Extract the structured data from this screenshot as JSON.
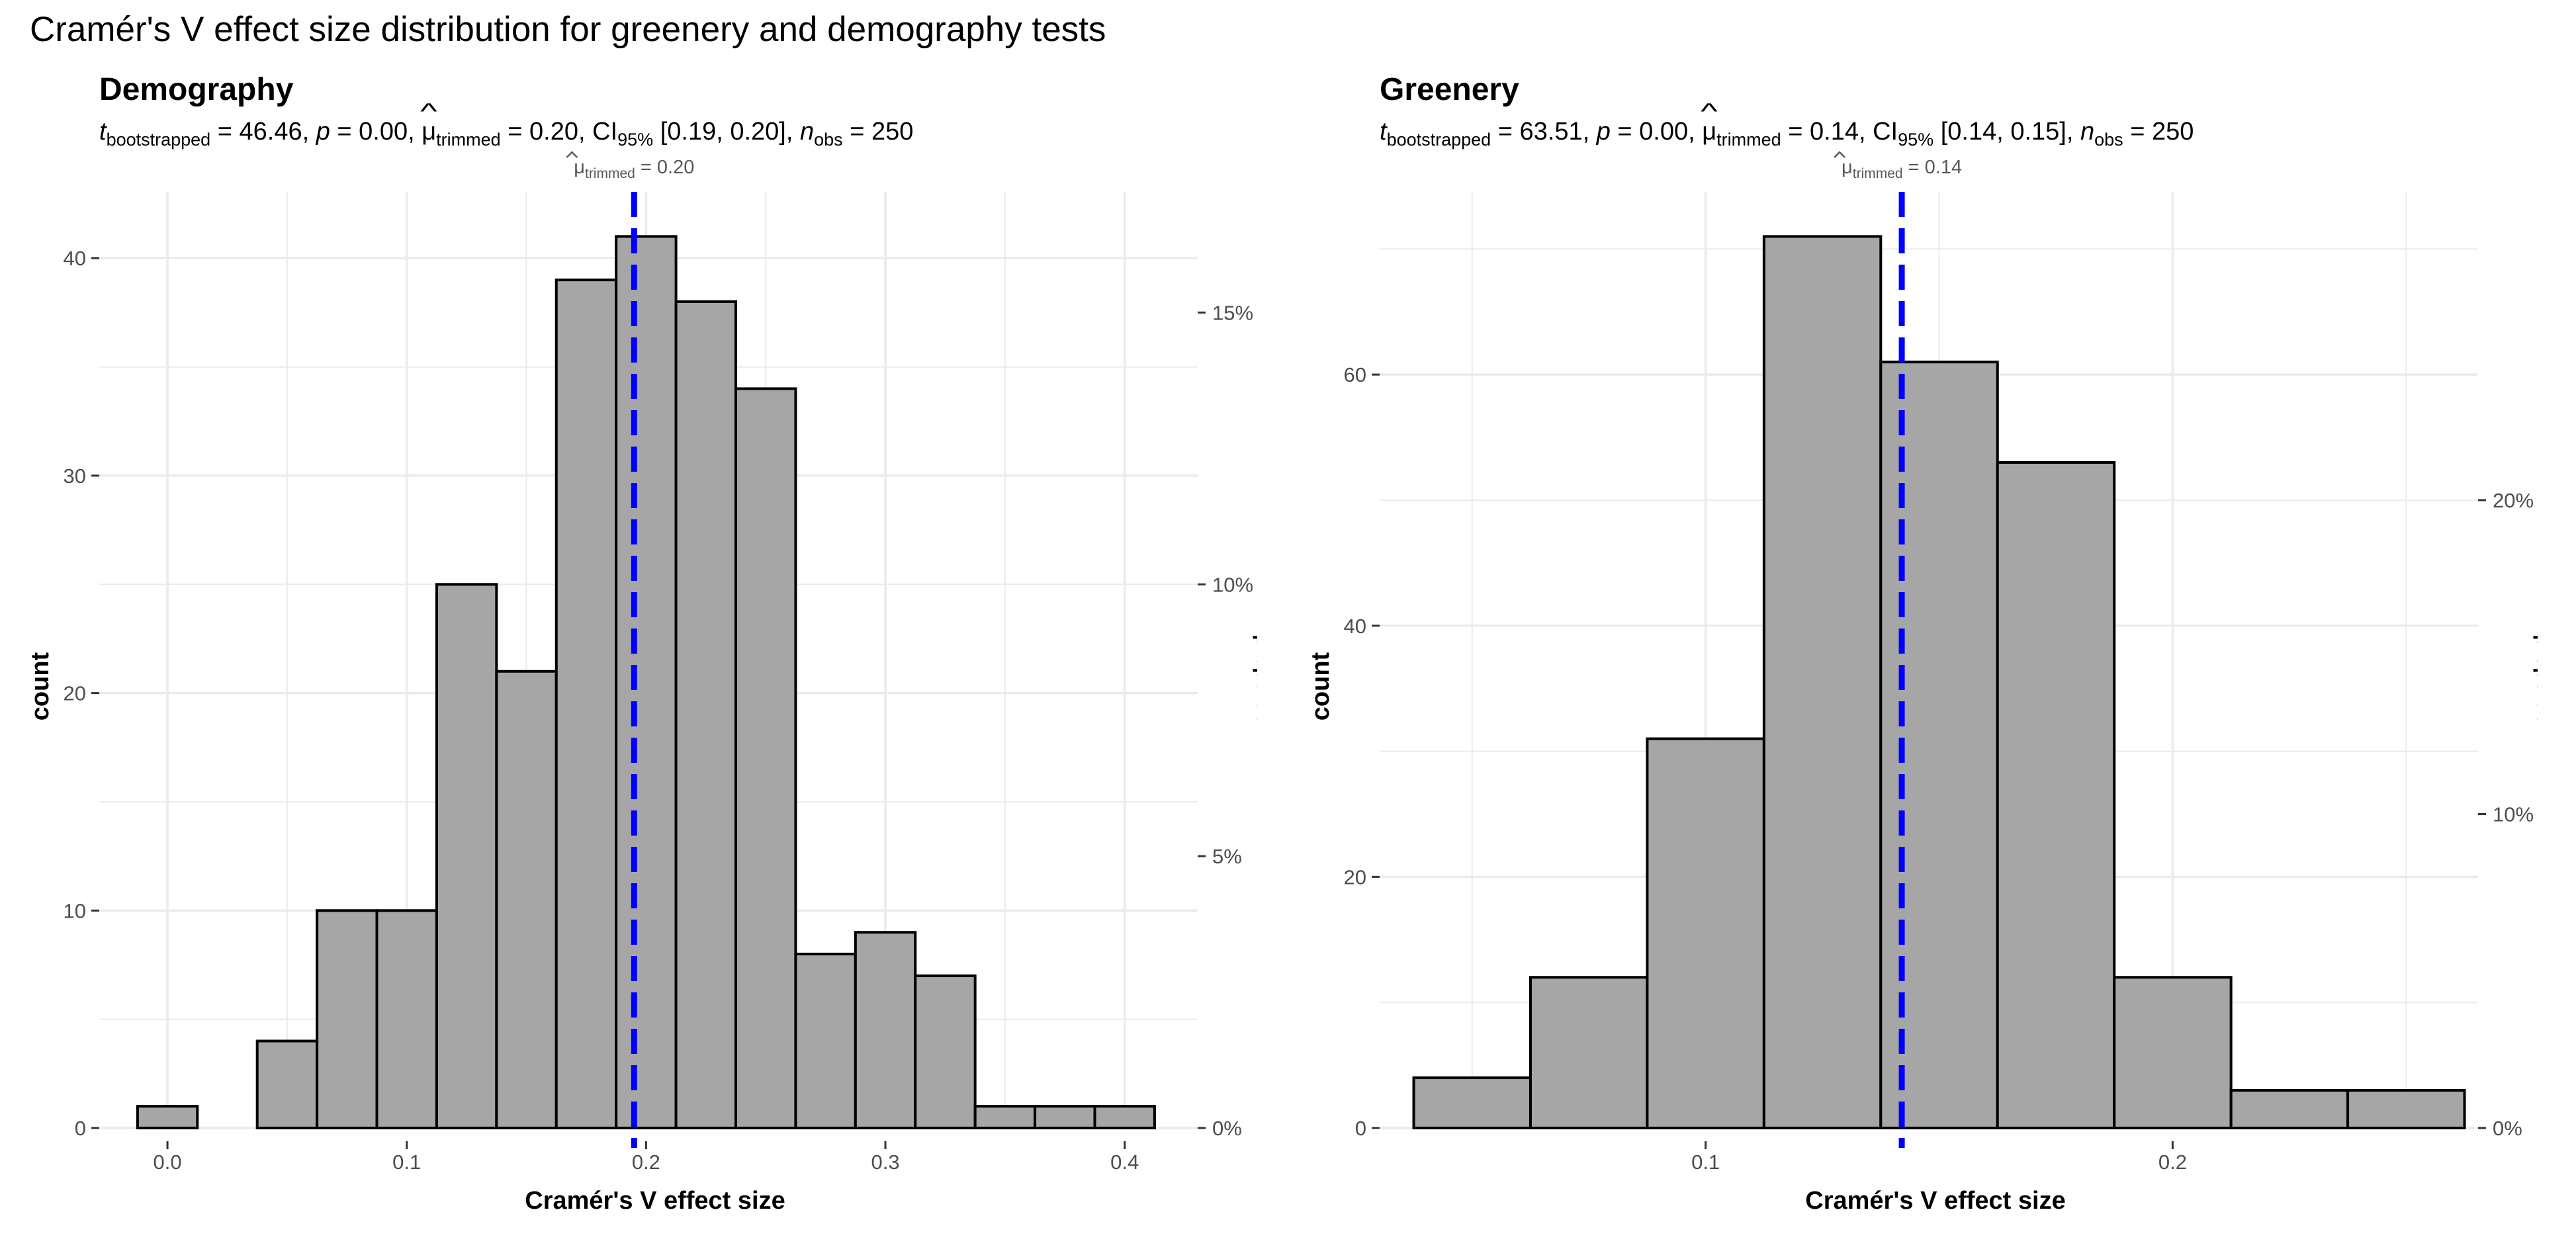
{
  "title": "Cramér's V effect size distribution for greenery and demography tests",
  "colors": {
    "bar_fill": "#a6a6a6",
    "bar_edge": "#000000",
    "mean_line": "#0000ff",
    "grid": "#ebebeb"
  },
  "chart_data": [
    {
      "type": "bar",
      "title": "Demography",
      "subtitle": {
        "t_label": "t",
        "t_sub": "bootstrapped",
        "t_value": "46.46",
        "p_label": "p",
        "p_value": "0.00",
        "mu_symbol": "μ",
        "mu_sub": "trimmed",
        "mu_value": "0.20",
        "ci_label": "CI",
        "ci_sub": "95%",
        "ci_value": "[0.19, 0.20]",
        "n_label": "n",
        "n_sub": "obs",
        "n_value": "250"
      },
      "annotation": {
        "symbol": "μ",
        "sub": "trimmed",
        "value": "= 0.20"
      },
      "mean_value": 0.195,
      "xlabel": "Cramér's V effect size",
      "ylabel": "count",
      "ylabel_secondary": "proportion",
      "xlim": [
        -0.0285,
        0.4305
      ],
      "ylim": [
        0,
        43.05
      ],
      "x_ticks": [
        0.0,
        0.1,
        0.2,
        0.3,
        0.4
      ],
      "x_tick_labels": [
        "0.0",
        "0.1",
        "0.2",
        "0.3",
        "0.4"
      ],
      "y_ticks": [
        0,
        10,
        20,
        30,
        40
      ],
      "y_tick_labels": [
        "0",
        "10",
        "20",
        "30",
        "40"
      ],
      "y2_ticks": [
        0,
        12.5,
        25,
        37.5
      ],
      "y2_tick_labels": [
        "0%",
        "5%",
        "10%",
        "15%"
      ],
      "bin_width": 0.025,
      "bin_starts": [
        -0.0125,
        0.0125,
        0.0375,
        0.0625,
        0.0875,
        0.1125,
        0.1375,
        0.1625,
        0.1875,
        0.2125,
        0.2375,
        0.2625,
        0.2875,
        0.3125,
        0.3375,
        0.3625,
        0.3875
      ],
      "values": [
        1,
        0,
        4,
        10,
        10,
        25,
        21,
        39,
        41,
        38,
        34,
        8,
        9,
        7,
        1,
        1,
        1
      ]
    },
    {
      "type": "bar",
      "title": "Greenery",
      "subtitle": {
        "t_label": "t",
        "t_sub": "bootstrapped",
        "t_value": "63.51",
        "p_label": "p",
        "p_value": "0.00",
        "mu_symbol": "μ",
        "mu_sub": "trimmed",
        "mu_value": "0.14",
        "ci_label": "CI",
        "ci_sub": "95%",
        "ci_value": "[0.14, 0.15]",
        "n_label": "n",
        "n_sub": "obs",
        "n_value": "250"
      },
      "annotation": {
        "symbol": "μ",
        "sub": "trimmed",
        "value": "= 0.14"
      },
      "mean_value": 0.142,
      "xlabel": "Cramér's V effect size",
      "ylabel": "count",
      "ylabel_secondary": "proportion",
      "xlim": [
        0.0302,
        0.2654
      ],
      "ylim": [
        0,
        74.55
      ],
      "x_ticks": [
        0.1,
        0.2
      ],
      "x_tick_labels": [
        "0.1",
        "0.2"
      ],
      "y_ticks": [
        0,
        20,
        40,
        60
      ],
      "y_tick_labels": [
        "0",
        "20",
        "40",
        "60"
      ],
      "y2_ticks": [
        0,
        25,
        50
      ],
      "y2_tick_labels": [
        "0%",
        "10%",
        "20%"
      ],
      "bin_width": 0.025,
      "bin_starts": [
        0.0375,
        0.0625,
        0.0875,
        0.1125,
        0.1375,
        0.1625,
        0.1875,
        0.2125,
        0.2375
      ],
      "values": [
        4,
        12,
        31,
        71,
        61,
        53,
        12,
        3,
        3
      ]
    }
  ]
}
